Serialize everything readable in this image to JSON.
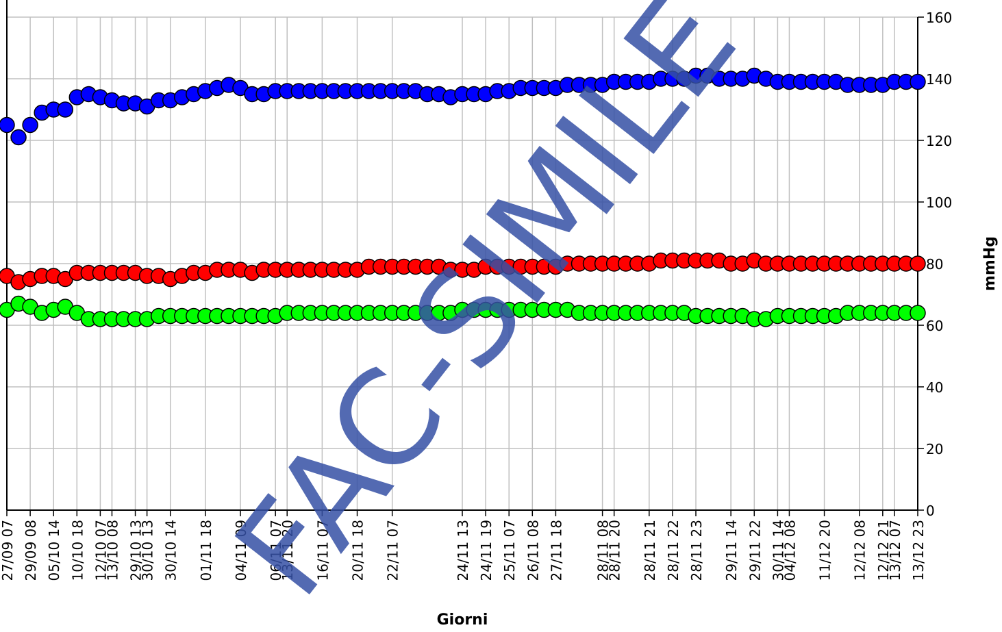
{
  "chart_data": {
    "type": "scatter",
    "x_label": "Giorni",
    "y_label": "mmHg",
    "watermark": "FAC-SIMILE",
    "categories": [
      "27/09 07",
      null,
      "29/09 08",
      null,
      "05/10 14",
      null,
      "10/10 18",
      null,
      "12/10 07",
      "13/10 08",
      null,
      "29/10 13",
      "30/10 13",
      null,
      "30/10 14",
      null,
      null,
      "01/11 18",
      null,
      null,
      "04/11 09",
      null,
      null,
      "06/11 07",
      "13/11 20",
      null,
      null,
      "16/11 07",
      null,
      null,
      "20/11 18",
      null,
      null,
      "22/11 07",
      null,
      null,
      null,
      null,
      null,
      "24/11 13",
      null,
      "24/11 19",
      null,
      "25/11 07",
      null,
      "26/11 08",
      null,
      "27/11 18",
      null,
      null,
      null,
      "28/11 08",
      "28/11 20",
      null,
      null,
      "28/11 21",
      null,
      "28/11 22",
      null,
      "28/11 23",
      null,
      null,
      "29/11 14",
      null,
      "29/11 22",
      null,
      "30/11 14",
      "04/12 08",
      null,
      null,
      "11/12 20",
      null,
      null,
      "12/12 08",
      null,
      "12/12 21",
      "13/12 07",
      null,
      "13/12 23"
    ],
    "series": [
      {
        "color": "#0000ff",
        "values": [
          125,
          121,
          125,
          129,
          130,
          130,
          134,
          135,
          134,
          133,
          132,
          132,
          131,
          133,
          133,
          134,
          135,
          136,
          137,
          138,
          137,
          135,
          135,
          136,
          136,
          136,
          136,
          136,
          136,
          136,
          136,
          136,
          136,
          136,
          136,
          136,
          135,
          135,
          134,
          135,
          135,
          135,
          136,
          136,
          137,
          137,
          137,
          137,
          138,
          138,
          138,
          138,
          139,
          139,
          139,
          139,
          140,
          140,
          140,
          141,
          141,
          140,
          140,
          140,
          141,
          140,
          139,
          139,
          139,
          139,
          139,
          139,
          138,
          138,
          138,
          138,
          139,
          139,
          139
        ]
      },
      {
        "color": "#ff0000",
        "values": [
          76,
          74,
          75,
          76,
          76,
          75,
          77,
          77,
          77,
          77,
          77,
          77,
          76,
          76,
          75,
          76,
          77,
          77,
          78,
          78,
          78,
          77,
          78,
          78,
          78,
          78,
          78,
          78,
          78,
          78,
          78,
          79,
          79,
          79,
          79,
          79,
          79,
          79,
          78,
          78,
          78,
          79,
          79,
          79,
          79,
          79,
          79,
          79,
          80,
          80,
          80,
          80,
          80,
          80,
          80,
          80,
          81,
          81,
          81,
          81,
          81,
          81,
          80,
          80,
          81,
          80,
          80,
          80,
          80,
          80,
          80,
          80,
          80,
          80,
          80,
          80,
          80,
          80,
          80
        ]
      },
      {
        "color": "#00ff00",
        "values": [
          65,
          67,
          66,
          64,
          65,
          66,
          64,
          62,
          62,
          62,
          62,
          62,
          62,
          63,
          63,
          63,
          63,
          63,
          63,
          63,
          63,
          63,
          63,
          63,
          64,
          64,
          64,
          64,
          64,
          64,
          64,
          64,
          64,
          64,
          64,
          64,
          64,
          64,
          64,
          65,
          65,
          65,
          65,
          65,
          65,
          65,
          65,
          65,
          65,
          64,
          64,
          64,
          64,
          64,
          64,
          64,
          64,
          64,
          64,
          63,
          63,
          63,
          63,
          63,
          62,
          62,
          63,
          63,
          63,
          63,
          63,
          63,
          64,
          64,
          64,
          64,
          64,
          64,
          64
        ]
      }
    ],
    "ylim": [
      0,
      160
    ],
    "yticks": [
      0,
      20,
      40,
      60,
      80,
      100,
      120,
      140,
      160
    ],
    "grid": true
  }
}
